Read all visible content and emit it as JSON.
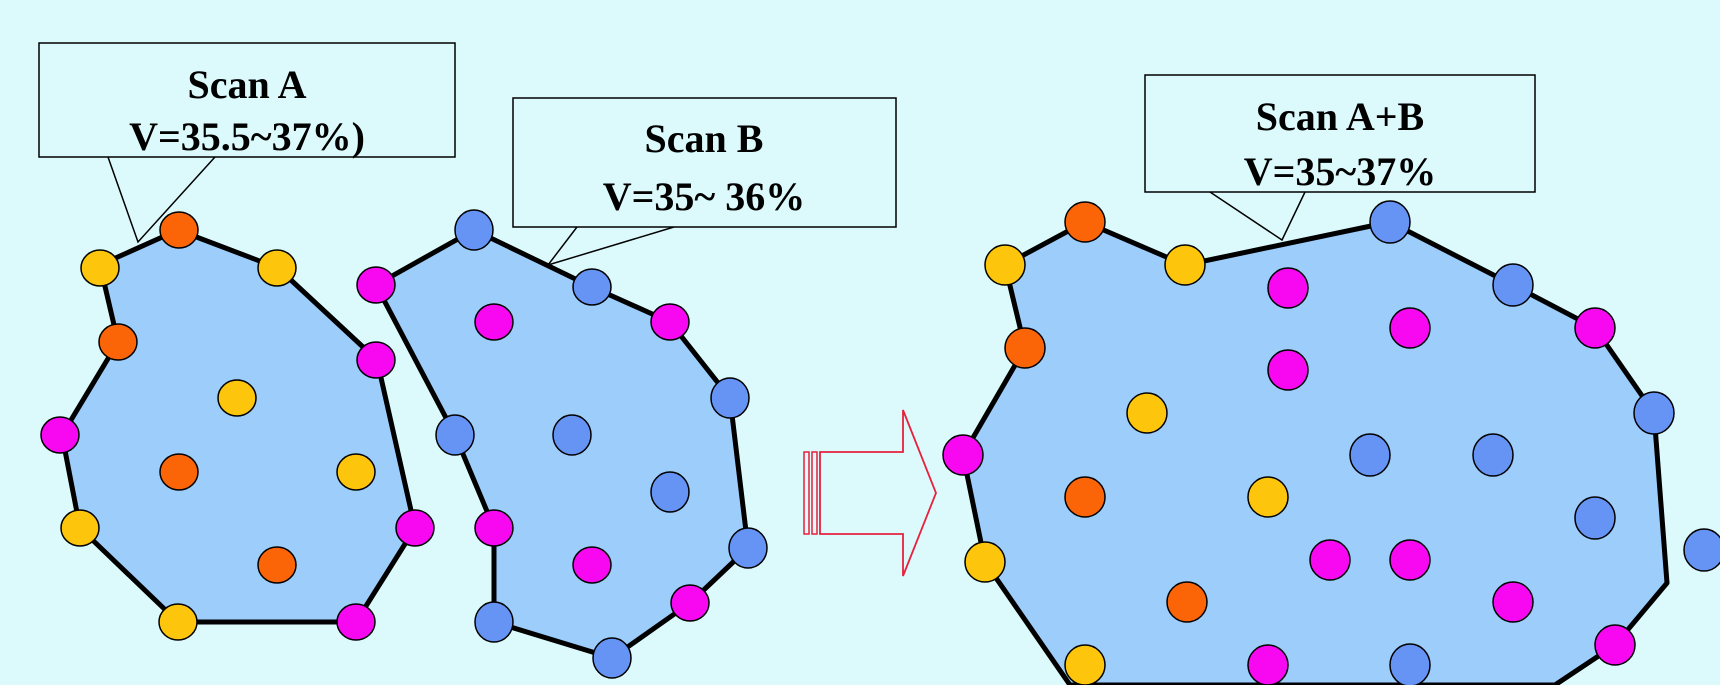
{
  "background": "#dcfafc",
  "colors": {
    "region_fill": "#9dcdfb",
    "outline": "#000000",
    "arrow": "#e8203c",
    "orange": "#fb6508",
    "yellow": "#fdc60c",
    "magenta": "#f708f0",
    "blue": "#6694f5"
  },
  "scan_a": {
    "title": "Scan A",
    "value": "V=35.5~37%)"
  },
  "scan_b": {
    "title": "Scan B",
    "value": "V=35~ 36%"
  },
  "scan_ab": {
    "title": "Scan A+B",
    "value": "V=35~37%"
  },
  "arrow_icon": "hollow-right-arrow"
}
